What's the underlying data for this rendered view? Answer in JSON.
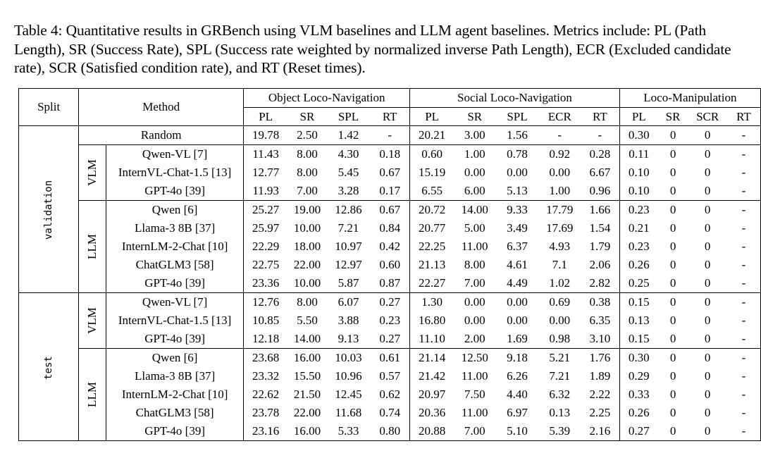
{
  "caption": "Table 4: Quantitative results in GRBench using VLM baselines and LLM agent baselines. Metrics include: PL (Path Length), SR (Success Rate), SPL (Success rate weighted by normalized inverse Path Length), ECR (Excluded candidate rate), SCR (Satisfied condition rate), and RT (Reset times).",
  "header": {
    "split": "Split",
    "method": "Method",
    "groups": [
      "Object Loco-Navigation",
      "Social Loco-Navigation",
      "Loco-Manipulation"
    ],
    "object_cols": [
      "PL",
      "SR",
      "SPL",
      "RT"
    ],
    "social_cols": [
      "PL",
      "SR",
      "SPL",
      "ECR",
      "RT"
    ],
    "manip_cols": [
      "PL",
      "SR",
      "SCR",
      "RT"
    ]
  },
  "splits": [
    {
      "name": "validation",
      "random": {
        "method": "Random",
        "values": [
          "19.78",
          "2.50",
          "1.42",
          "-",
          "20.21",
          "3.00",
          "1.56",
          "-",
          "-",
          "0.30",
          "0",
          "0",
          "-"
        ]
      },
      "groups": [
        {
          "label": "VLM",
          "rows": [
            {
              "method": "Qwen-VL [7]",
              "values": [
                "11.43",
                "8.00",
                "4.30",
                "0.18",
                "0.60",
                "1.00",
                "0.78",
                "0.92",
                "0.28",
                "0.11",
                "0",
                "0",
                "-"
              ]
            },
            {
              "method": "InternVL-Chat-1.5 [13]",
              "values": [
                "12.77",
                "8.00",
                "5.45",
                "0.67",
                "15.19",
                "0.00",
                "0.00",
                "0.00",
                "6.67",
                "0.10",
                "0",
                "0",
                "-"
              ]
            },
            {
              "method": "GPT-4o [39]",
              "values": [
                "11.93",
                "7.00",
                "3.28",
                "0.17",
                "6.55",
                "6.00",
                "5.13",
                "1.00",
                "0.96",
                "0.10",
                "0",
                "0",
                "-"
              ]
            }
          ]
        },
        {
          "label": "LLM",
          "rows": [
            {
              "method": "Qwen [6]",
              "values": [
                "25.27",
                "19.00",
                "12.86",
                "0.67",
                "20.72",
                "14.00",
                "9.33",
                "17.79",
                "1.66",
                "0.23",
                "0",
                "0",
                "-"
              ]
            },
            {
              "method": "Llama-3 8B [37]",
              "values": [
                "25.97",
                "10.00",
                "7.21",
                "0.84",
                "20.77",
                "5.00",
                "3.49",
                "17.69",
                "1.54",
                "0.21",
                "0",
                "0",
                "-"
              ]
            },
            {
              "method": "InternLM-2-Chat [10]",
              "values": [
                "22.29",
                "18.00",
                "10.97",
                "0.42",
                "22.25",
                "11.00",
                "6.37",
                "4.93",
                "1.79",
                "0.23",
                "0",
                "0",
                "-"
              ]
            },
            {
              "method": "ChatGLM3 [58]",
              "values": [
                "22.75",
                "22.00",
                "12.97",
                "0.60",
                "21.13",
                "8.00",
                "4.61",
                "7.1",
                "2.06",
                "0.26",
                "0",
                "0",
                "-"
              ]
            },
            {
              "method": "GPT-4o [39]",
              "values": [
                "23.36",
                "10.00",
                "5.87",
                "0.87",
                "22.27",
                "7.00",
                "4.49",
                "1.02",
                "2.82",
                "0.25",
                "0",
                "0",
                "-"
              ]
            }
          ]
        }
      ]
    },
    {
      "name": "test",
      "groups": [
        {
          "label": "VLM",
          "rows": [
            {
              "method": "Qwen-VL [7]",
              "values": [
                "12.76",
                "8.00",
                "6.07",
                "0.27",
                "1.30",
                "0.00",
                "0.00",
                "0.69",
                "0.38",
                "0.15",
                "0",
                "0",
                "-"
              ]
            },
            {
              "method": "InternVL-Chat-1.5 [13]",
              "values": [
                "10.85",
                "5.50",
                "3.88",
                "0.23",
                "16.80",
                "0.00",
                "0.00",
                "0.00",
                "6.35",
                "0.13",
                "0",
                "0",
                "-"
              ]
            },
            {
              "method": "GPT-4o [39]",
              "values": [
                "12.18",
                "14.00",
                "9.13",
                "0.27",
                "11.10",
                "2.00",
                "1.69",
                "0.98",
                "3.10",
                "0.15",
                "0",
                "0",
                "-"
              ]
            }
          ]
        },
        {
          "label": "LLM",
          "rows": [
            {
              "method": "Qwen [6]",
              "values": [
                "23.68",
                "16.00",
                "10.03",
                "0.61",
                "21.14",
                "12.50",
                "9.18",
                "5.21",
                "1.76",
                "0.30",
                "0",
                "0",
                "-"
              ]
            },
            {
              "method": "Llama-3 8B [37]",
              "values": [
                "23.32",
                "15.50",
                "10.96",
                "0.57",
                "21.42",
                "11.00",
                "6.26",
                "7.21",
                "1.89",
                "0.29",
                "0",
                "0",
                "-"
              ]
            },
            {
              "method": "InternLM-2-Chat [10]",
              "values": [
                "22.62",
                "21.50",
                "12.45",
                "0.62",
                "20.97",
                "7.50",
                "4.40",
                "6.32",
                "2.22",
                "0.33",
                "0",
                "0",
                "-"
              ]
            },
            {
              "method": "ChatGLM3 [58]",
              "values": [
                "23.78",
                "22.00",
                "11.68",
                "0.74",
                "20.36",
                "11.00",
                "6.97",
                "0.13",
                "2.25",
                "0.26",
                "0",
                "0",
                "-"
              ]
            },
            {
              "method": "GPT-4o [39]",
              "values": [
                "23.16",
                "16.00",
                "5.33",
                "0.80",
                "20.88",
                "7.00",
                "5.10",
                "5.39",
                "2.16",
                "0.27",
                "0",
                "0",
                "-"
              ]
            }
          ]
        }
      ]
    }
  ]
}
